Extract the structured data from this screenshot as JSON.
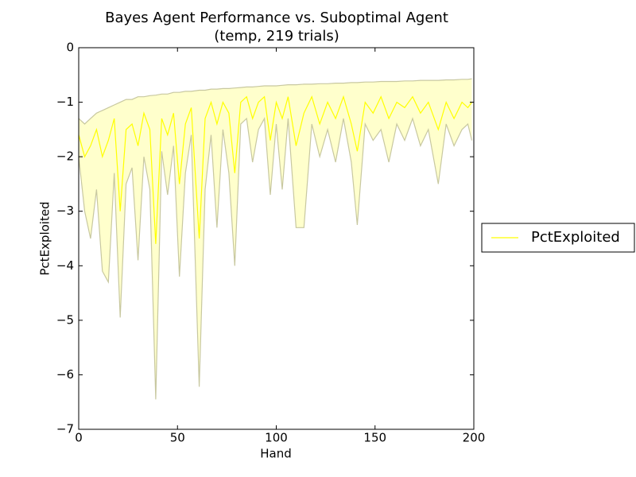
{
  "chart_data": {
    "type": "line",
    "title": "Bayes Agent Performance vs. Suboptimal Agent",
    "subtitle": "(temp, 219 trials)",
    "xlabel": "Hand",
    "ylabel": "PctExploited",
    "x": [
      0,
      3,
      6,
      9,
      12,
      15,
      18,
      21,
      24,
      27,
      30,
      33,
      36,
      39,
      42,
      45,
      48,
      51,
      54,
      57,
      61,
      64,
      67,
      70,
      73,
      76,
      79,
      82,
      85,
      88,
      91,
      94,
      97,
      100,
      103,
      106,
      110,
      114,
      118,
      122,
      126,
      130,
      134,
      138,
      141,
      145,
      149,
      153,
      157,
      161,
      165,
      169,
      173,
      177,
      182,
      186,
      190,
      194,
      197,
      199
    ],
    "series": [
      {
        "name": "PctExploited",
        "color": "#ffff00",
        "values": [
          -1.6,
          -2.0,
          -1.8,
          -1.5,
          -2.0,
          -1.7,
          -1.3,
          -3.0,
          -1.5,
          -1.4,
          -1.8,
          -1.2,
          -1.5,
          -3.6,
          -1.3,
          -1.6,
          -1.2,
          -2.5,
          -1.4,
          -1.1,
          -3.5,
          -1.3,
          -1.0,
          -1.4,
          -1.0,
          -1.2,
          -2.3,
          -1.0,
          -0.9,
          -1.3,
          -1.0,
          -0.9,
          -1.7,
          -1.0,
          -1.3,
          -0.9,
          -1.8,
          -1.2,
          -0.9,
          -1.4,
          -1.0,
          -1.3,
          -0.9,
          -1.4,
          -1.9,
          -1.0,
          -1.2,
          -0.9,
          -1.3,
          -1.0,
          -1.1,
          -0.9,
          -1.2,
          -1.0,
          -1.5,
          -1.0,
          -1.3,
          -1.0,
          -1.1,
          -1.0
        ]
      }
    ],
    "band": {
      "color": "#ffffcc",
      "edge_color": "#c8c8a0",
      "lower": [
        -2.0,
        -3.0,
        -3.5,
        -2.6,
        -4.1,
        -4.3,
        -2.3,
        -4.95,
        -2.5,
        -2.2,
        -3.9,
        -2.0,
        -2.6,
        -6.45,
        -1.9,
        -2.7,
        -1.8,
        -4.2,
        -2.3,
        -1.6,
        -6.22,
        -2.6,
        -1.6,
        -3.3,
        -1.5,
        -2.3,
        -4.0,
        -1.4,
        -1.3,
        -2.1,
        -1.5,
        -1.3,
        -2.7,
        -1.4,
        -2.6,
        -1.3,
        -3.3,
        -3.3,
        -1.4,
        -2.0,
        -1.5,
        -2.1,
        -1.3,
        -2.1,
        -3.25,
        -1.4,
        -1.7,
        -1.5,
        -2.1,
        -1.4,
        -1.7,
        -1.3,
        -1.8,
        -1.5,
        -2.5,
        -1.4,
        -1.8,
        -1.5,
        -1.4,
        -1.7
      ],
      "upper": [
        -1.3,
        -1.4,
        -1.3,
        -1.2,
        -1.15,
        -1.1,
        -1.05,
        -1.0,
        -0.95,
        -0.95,
        -0.9,
        -0.9,
        -0.88,
        -0.87,
        -0.85,
        -0.85,
        -0.82,
        -0.82,
        -0.8,
        -0.8,
        -0.78,
        -0.78,
        -0.76,
        -0.76,
        -0.75,
        -0.75,
        -0.74,
        -0.73,
        -0.72,
        -0.72,
        -0.71,
        -0.7,
        -0.7,
        -0.7,
        -0.69,
        -0.68,
        -0.68,
        -0.67,
        -0.67,
        -0.66,
        -0.66,
        -0.65,
        -0.65,
        -0.64,
        -0.64,
        -0.63,
        -0.63,
        -0.62,
        -0.62,
        -0.62,
        -0.61,
        -0.61,
        -0.6,
        -0.6,
        -0.6,
        -0.59,
        -0.59,
        -0.58,
        -0.58,
        -0.57
      ]
    },
    "xlim": [
      0,
      200
    ],
    "ylim": [
      -7,
      0
    ],
    "xticks": [
      0,
      50,
      100,
      150,
      200
    ],
    "yticks": [
      0,
      {
        "value": -1,
        "label": "−1"
      },
      {
        "value": -2,
        "label": "−2"
      },
      {
        "value": -3,
        "label": "−3"
      },
      {
        "value": -4,
        "label": "−4"
      },
      {
        "value": -5,
        "label": "−5"
      },
      {
        "value": -6,
        "label": "−6"
      },
      {
        "value": -7,
        "label": "−7"
      }
    ],
    "legend": "right"
  }
}
